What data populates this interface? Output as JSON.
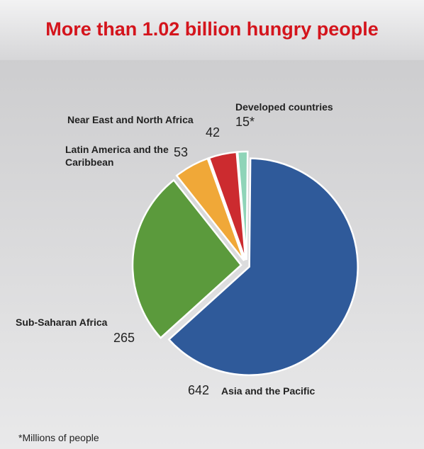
{
  "chart_data": {
    "type": "pie",
    "title": "More than 1.02 billion hungry people",
    "categories": [
      "Asia and the Pacific",
      "Sub-Saharan Africa",
      "Latin America and the Caribbean",
      "Near East and North Africa",
      "Developed countries"
    ],
    "values": [
      642,
      265,
      53,
      42,
      15
    ],
    "value_labels": [
      "642",
      "265",
      "53",
      "42",
      "15*"
    ],
    "colors": [
      "#2f5a9a",
      "#5b9a3c",
      "#f0a838",
      "#cc2b2f",
      "#8fd4b8"
    ],
    "footnote": "*Millions of people"
  }
}
